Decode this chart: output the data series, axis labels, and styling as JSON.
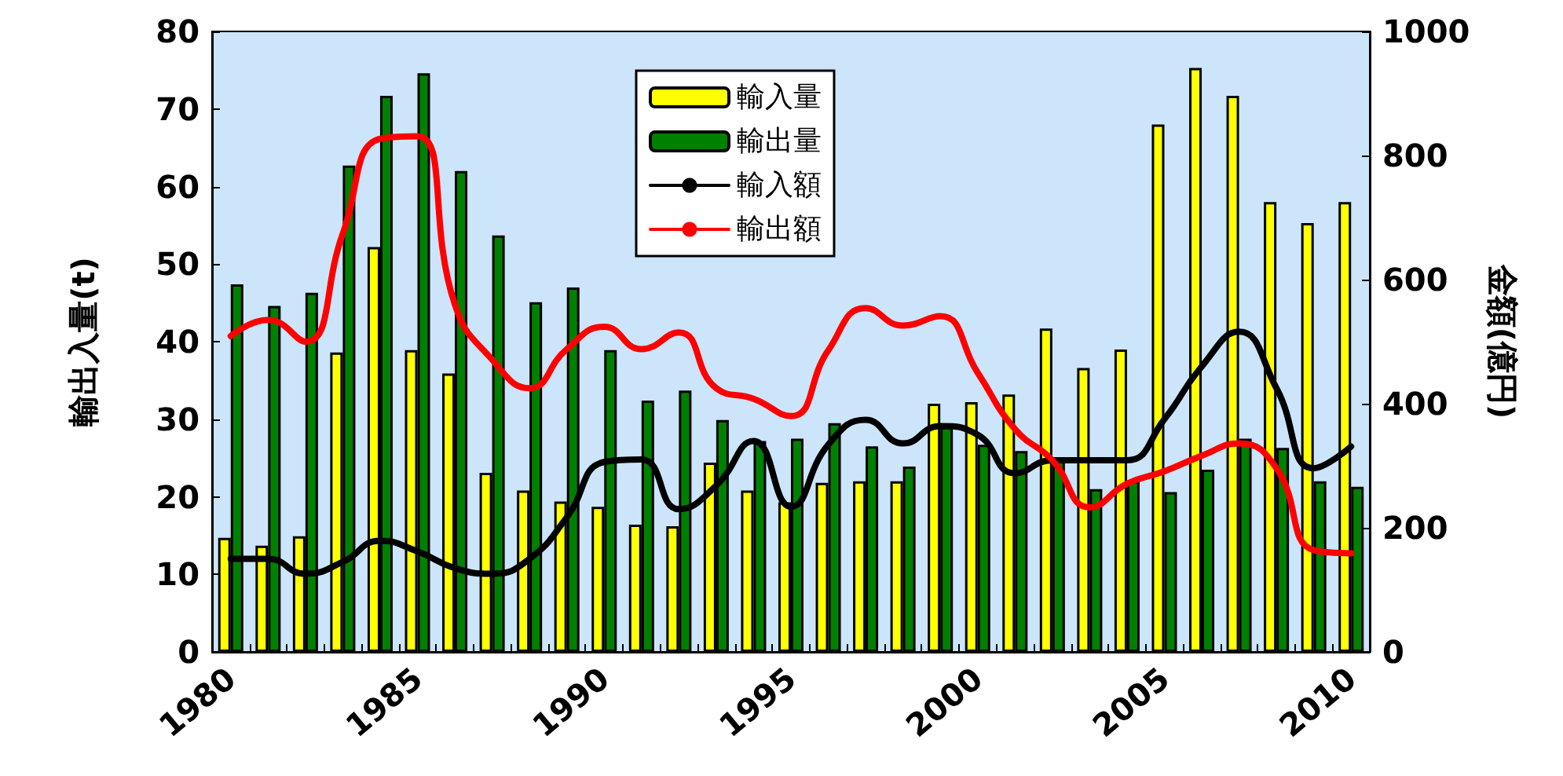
{
  "chart_data": {
    "type": "bar",
    "ylabel": "輸出入量(t)",
    "y2label": "金額(億円)",
    "categories": [
      "1980",
      null,
      null,
      null,
      null,
      "1985",
      null,
      null,
      null,
      null,
      "1990",
      null,
      null,
      null,
      null,
      "1995",
      null,
      null,
      null,
      null,
      "2000",
      null,
      null,
      null,
      null,
      "2005",
      null,
      null,
      null,
      null,
      "2010"
    ],
    "series": [
      {
        "name": "輸入量",
        "color": "#ffff00",
        "values": [
          14.7,
          13.7,
          14.9,
          38.6,
          52.2,
          38.9,
          35.9,
          23.1,
          20.8,
          19.4,
          18.7,
          16.4,
          16.2,
          24.4,
          20.8,
          19.3,
          21.8,
          22,
          22,
          32,
          32.2,
          33.2,
          41.7,
          36.6,
          39,
          68,
          75.3,
          71.7,
          58,
          55.3,
          58
        ]
      },
      {
        "name": "輸出量",
        "color": "#008000",
        "values": [
          47.4,
          44.6,
          46.3,
          62.7,
          71.7,
          74.6,
          62,
          53.7,
          45.1,
          47,
          38.9,
          32.4,
          33.7,
          29.9,
          27.2,
          27.5,
          29.5,
          26.5,
          23.9,
          29,
          26.7,
          25.9,
          24.7,
          21,
          22,
          20.6,
          23.5,
          27.5,
          26.3,
          22,
          21.3
        ]
      },
      {
        "name": "輸入額",
        "type": "line",
        "axis": "y2",
        "color": "#000000",
        "values": [
          150,
          150,
          126,
          145,
          179,
          162,
          135,
          126,
          150,
          217,
          306,
          310,
          230,
          268,
          340,
          234,
          334,
          374,
          336,
          364,
          350,
          288,
          309,
          309,
          309,
          375,
          460,
          516,
          425,
          296,
          331
        ]
      },
      {
        "name": "輸出額",
        "type": "line",
        "axis": "y2",
        "color": "#ff0000",
        "values": [
          509,
          535,
          500,
          674,
          827,
          831,
          560,
          471,
          425,
          488,
          524,
          488,
          515,
          425,
          408,
          380,
          486,
          554,
          526,
          541,
          450,
          359,
          309,
          233,
          271,
          291,
          316,
          336,
          296,
          164,
          159
        ]
      }
    ],
    "ylim": [
      0,
      80
    ],
    "yticks": [
      0,
      10,
      20,
      30,
      40,
      50,
      60,
      70,
      80
    ],
    "y2lim": [
      0,
      1000
    ],
    "y2ticks": [
      0,
      200,
      400,
      600,
      800,
      1000
    ],
    "legend": "top",
    "grid": false,
    "marker": "none",
    "line_style": "solid"
  }
}
